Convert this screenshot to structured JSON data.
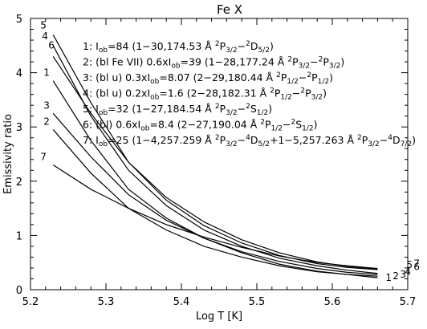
{
  "chart_data": {
    "type": "line",
    "title": "Fe X",
    "xlabel": "Log T [K]",
    "ylabel": "Emissivity ratio",
    "xlim": [
      5.2,
      5.7
    ],
    "ylim": [
      0,
      5
    ],
    "x_ticks": [
      5.2,
      5.3,
      5.4,
      5.5,
      5.6,
      5.7
    ],
    "x_tick_labels": [
      "5.2",
      "5.3",
      "5.4",
      "5.5",
      "5.6",
      "5.7"
    ],
    "y_ticks": [
      0,
      1,
      2,
      3,
      4,
      5
    ],
    "y_tick_labels": [
      "0",
      "1",
      "2",
      "3",
      "4",
      "5"
    ],
    "x": [
      5.23,
      5.28,
      5.33,
      5.38,
      5.43,
      5.48,
      5.53,
      5.58,
      5.62,
      5.66
    ],
    "series": [
      {
        "name": "1",
        "values": [
          3.85,
          2.75,
          1.85,
          1.32,
          0.95,
          0.68,
          0.47,
          0.34,
          0.28,
          0.22
        ]
      },
      {
        "name": "2",
        "values": [
          2.95,
          2.15,
          1.5,
          1.1,
          0.8,
          0.6,
          0.44,
          0.33,
          0.28,
          0.25
        ]
      },
      {
        "name": "3",
        "values": [
          3.25,
          2.45,
          1.75,
          1.28,
          0.95,
          0.7,
          0.52,
          0.39,
          0.32,
          0.28
        ]
      },
      {
        "name": "4",
        "values": [
          4.5,
          3.2,
          2.2,
          1.55,
          1.1,
          0.8,
          0.58,
          0.44,
          0.36,
          0.3
        ]
      },
      {
        "name": "5",
        "values": [
          4.7,
          3.45,
          2.35,
          1.65,
          1.18,
          0.86,
          0.63,
          0.48,
          0.41,
          0.37
        ]
      },
      {
        "name": "6",
        "values": [
          4.3,
          3.25,
          2.35,
          1.7,
          1.25,
          0.92,
          0.68,
          0.51,
          0.43,
          0.38
        ]
      },
      {
        "name": "7",
        "values": [
          2.3,
          1.85,
          1.5,
          1.2,
          0.97,
          0.78,
          0.62,
          0.5,
          0.44,
          0.39
        ]
      }
    ],
    "legend": [
      {
        "id": "1",
        "prefix": "1: I",
        "parts": [
          {
            "t": "ob",
            "s": "sub"
          },
          {
            "t": "=84 (1−30,174.53 Å "
          },
          {
            "t": "2",
            "s": "sup"
          },
          {
            "t": "P"
          },
          {
            "t": "3/2",
            "s": "sub"
          },
          {
            "t": "−"
          },
          {
            "t": "2",
            "s": "sup"
          },
          {
            "t": "D"
          },
          {
            "t": "5/2",
            "s": "sub"
          },
          {
            "t": ")"
          }
        ]
      },
      {
        "id": "2",
        "prefix": "2: (bl Fe VII) 0.6xI",
        "parts": [
          {
            "t": "ob",
            "s": "sub"
          },
          {
            "t": "=39 (1−28,177.24 Å "
          },
          {
            "t": "2",
            "s": "sup"
          },
          {
            "t": "P"
          },
          {
            "t": "3/2",
            "s": "sub"
          },
          {
            "t": "−"
          },
          {
            "t": "2",
            "s": "sup"
          },
          {
            "t": "P"
          },
          {
            "t": "3/2",
            "s": "sub"
          },
          {
            "t": ")"
          }
        ]
      },
      {
        "id": "3",
        "prefix": "3: (bl u) 0.3xI",
        "parts": [
          {
            "t": "ob",
            "s": "sub"
          },
          {
            "t": "=8.07 (2−29,180.44 Å "
          },
          {
            "t": "2",
            "s": "sup"
          },
          {
            "t": "P"
          },
          {
            "t": "1/2",
            "s": "sub"
          },
          {
            "t": "−"
          },
          {
            "t": "2",
            "s": "sup"
          },
          {
            "t": "P"
          },
          {
            "t": "1/2",
            "s": "sub"
          },
          {
            "t": ")"
          }
        ]
      },
      {
        "id": "4",
        "prefix": "4: (bl u) 0.2xI",
        "parts": [
          {
            "t": "ob",
            "s": "sub"
          },
          {
            "t": "=1.6 (2−28,182.31 Å "
          },
          {
            "t": "2",
            "s": "sup"
          },
          {
            "t": "P"
          },
          {
            "t": "1/2",
            "s": "sub"
          },
          {
            "t": "−"
          },
          {
            "t": "2",
            "s": "sup"
          },
          {
            "t": "P"
          },
          {
            "t": "3/2",
            "s": "sub"
          },
          {
            "t": ")"
          }
        ]
      },
      {
        "id": "5",
        "prefix": "5: I",
        "parts": [
          {
            "t": "ob",
            "s": "sub"
          },
          {
            "t": "=32 (1−27,184.54 Å "
          },
          {
            "t": "2",
            "s": "sup"
          },
          {
            "t": "P"
          },
          {
            "t": "3/2",
            "s": "sub"
          },
          {
            "t": "−"
          },
          {
            "t": "2",
            "s": "sup"
          },
          {
            "t": "S"
          },
          {
            "t": "1/2",
            "s": "sub"
          },
          {
            "t": ")"
          }
        ]
      },
      {
        "id": "6",
        "prefix": "6: (bl) 0.6xI",
        "parts": [
          {
            "t": "ob",
            "s": "sub"
          },
          {
            "t": "=8.4 (2−27,190.04 Å "
          },
          {
            "t": "2",
            "s": "sup"
          },
          {
            "t": "P"
          },
          {
            "t": "1/2",
            "s": "sub"
          },
          {
            "t": "−"
          },
          {
            "t": "2",
            "s": "sup"
          },
          {
            "t": "S"
          },
          {
            "t": "1/2",
            "s": "sub"
          },
          {
            "t": ")"
          }
        ]
      },
      {
        "id": "7",
        "prefix": "7: I",
        "parts": [
          {
            "t": "ob",
            "s": "sub"
          },
          {
            "t": "=25 (1−4,257.259 Å "
          },
          {
            "t": "2",
            "s": "sup"
          },
          {
            "t": "P"
          },
          {
            "t": "3/2",
            "s": "sub"
          },
          {
            "t": "−"
          },
          {
            "t": "4",
            "s": "sup"
          },
          {
            "t": "D"
          },
          {
            "t": "5/2",
            "s": "sub"
          },
          {
            "t": "+1−5,257.263 Å "
          },
          {
            "t": "2",
            "s": "sup"
          },
          {
            "t": "P"
          },
          {
            "t": "3/2",
            "s": "sub"
          },
          {
            "t": "−"
          },
          {
            "t": "4",
            "s": "sup"
          },
          {
            "t": "D"
          },
          {
            "t": "7/2",
            "s": "sub"
          },
          {
            "t": ")"
          }
        ]
      }
    ]
  }
}
